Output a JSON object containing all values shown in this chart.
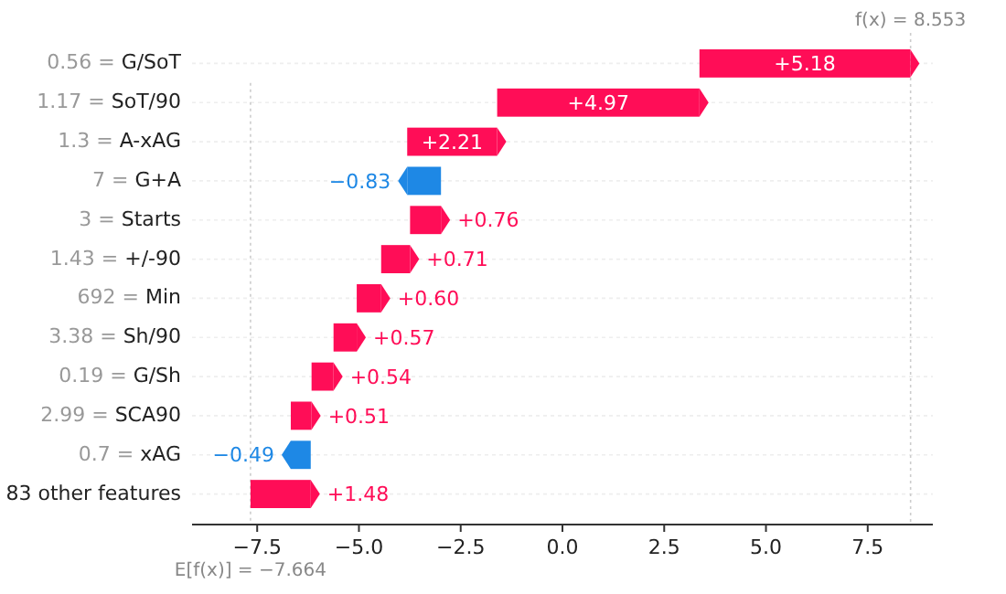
{
  "chart_data": {
    "type": "bar",
    "orientation": "horizontal",
    "categories": [
      "0.56 = G/SoT",
      "1.17 = SoT/90",
      "1.3 = A-xAG",
      "7 = G+A",
      "3 = Starts",
      "1.43 = +/-90",
      "692 = Min",
      "3.38 = Sh/90",
      "0.19 = G/Sh",
      "2.99 = SCA90",
      "0.7 = xAG",
      "83 other features"
    ],
    "values": [
      5.18,
      4.97,
      2.21,
      -0.83,
      0.76,
      0.71,
      0.6,
      0.57,
      0.54,
      0.51,
      -0.49,
      1.48
    ],
    "base": [
      3.366,
      -1.604,
      -3.814,
      -2.984,
      -3.744,
      -4.454,
      -5.054,
      -5.624,
      -6.164,
      -6.674,
      -6.184,
      -7.664
    ],
    "colors": [
      "#ff0d57",
      "#ff0d57",
      "#ff0d57",
      "#1e88e5",
      "#ff0d57",
      "#ff0d57",
      "#ff0d57",
      "#ff0d57",
      "#ff0d57",
      "#ff0d57",
      "#1e88e5",
      "#ff0d57"
    ],
    "value_labels": [
      "+5.18",
      "+4.97",
      "+2.21",
      "−0.83",
      "+0.76",
      "+0.71",
      "+0.60",
      "+0.57",
      "+0.54",
      "+0.51",
      "−0.49",
      "+1.48"
    ],
    "xlim": [
      -9.1,
      9.1
    ],
    "xticks": [
      {
        "value": -7.5,
        "label": "−7.5"
      },
      {
        "value": -5,
        "label": "−5.0"
      },
      {
        "value": -2.5,
        "label": "−2.5"
      },
      {
        "value": 0,
        "label": "0.0"
      },
      {
        "value": 2.5,
        "label": "2.5"
      },
      {
        "value": 5,
        "label": "5.0"
      },
      {
        "value": 7.5,
        "label": "7.5"
      }
    ],
    "ref_lines": [
      {
        "axis": "x",
        "value": 8.553,
        "label": "f(x) = 8.553",
        "color": "#cccccc",
        "line_style": "dotted"
      },
      {
        "axis": "x",
        "value": -7.664,
        "label": "E[f(x)] = −7.664",
        "color": "#cccccc",
        "line_style": "dotted"
      }
    ],
    "grid": "y"
  }
}
